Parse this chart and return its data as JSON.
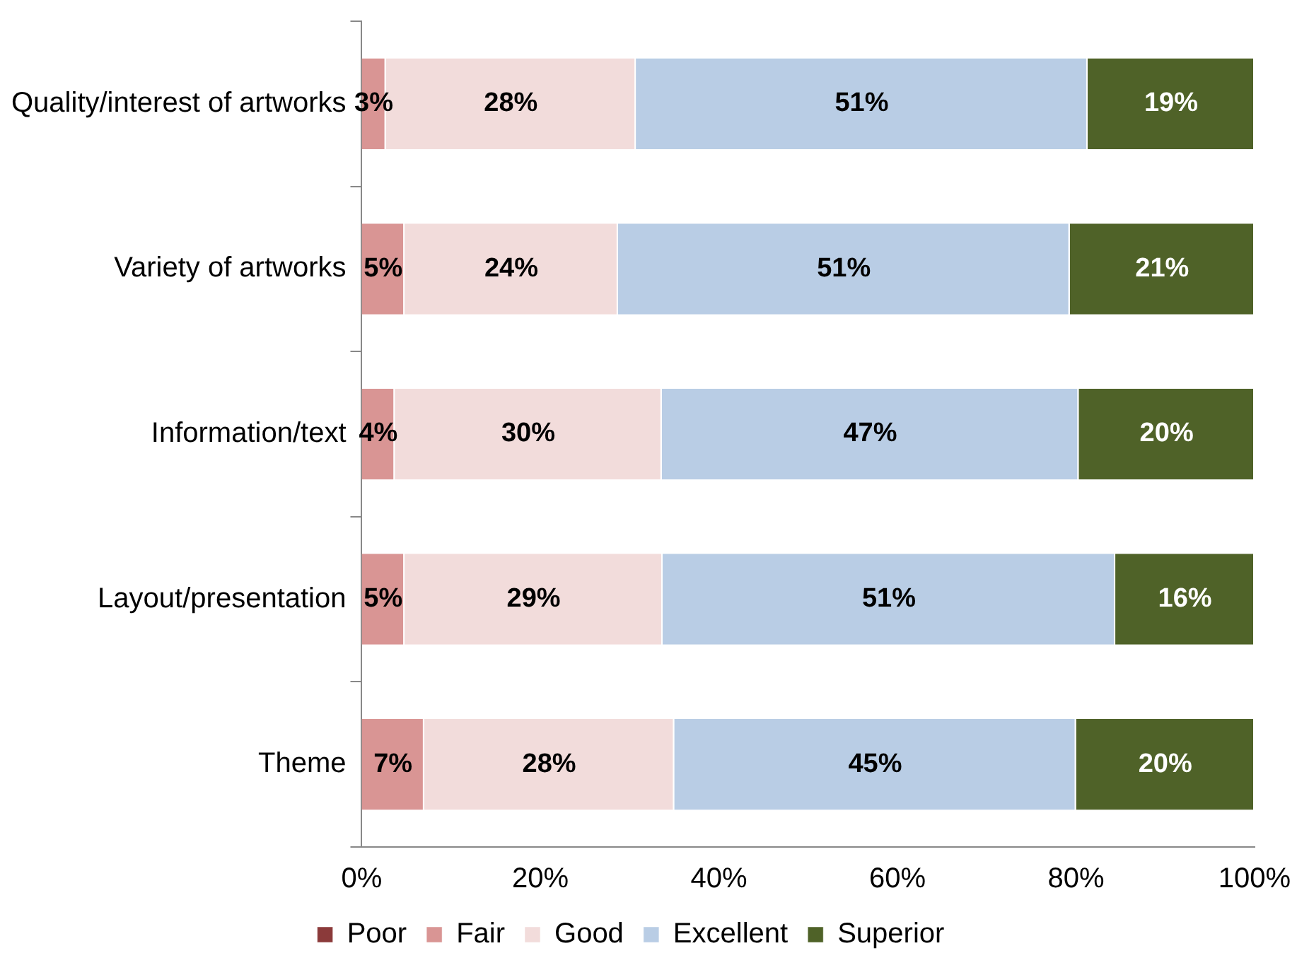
{
  "chart_data": {
    "type": "bar",
    "orientation": "horizontal",
    "stacked": true,
    "legend": "bottom",
    "grid": false,
    "categories": [
      "Quality/interest of artworks",
      "Variety of artworks",
      "Information/text",
      "Layout/presentation",
      "Theme"
    ],
    "xlim": [
      0,
      100
    ],
    "xticks": [
      {
        "value": 0,
        "label": "0%"
      },
      {
        "value": 20,
        "label": "20%"
      },
      {
        "value": 40,
        "label": "40%"
      },
      {
        "value": 60,
        "label": "60%"
      },
      {
        "value": 80,
        "label": "80%"
      },
      {
        "value": 100,
        "label": "100%"
      }
    ],
    "series": [
      {
        "name": "Poor",
        "color": "#8b3a3a",
        "values": [
          0,
          0,
          0,
          0,
          0
        ],
        "value_labels": [
          null,
          null,
          null,
          null,
          null
        ]
      },
      {
        "name": "Fair",
        "color": "#d99594",
        "values": [
          2.7,
          4.8,
          3.7,
          4.8,
          7
        ],
        "value_labels": [
          "3%",
          "5%",
          "4%",
          "5%",
          "7%"
        ]
      },
      {
        "name": "Good",
        "color": "#f2dcdb",
        "values": [
          28,
          23.9,
          29.9,
          28.9,
          28
        ],
        "value_labels": [
          "28%",
          "24%",
          "30%",
          "29%",
          "28%"
        ]
      },
      {
        "name": "Excellent",
        "color": "#b9cde5",
        "values": [
          50.6,
          50.6,
          46.7,
          50.7,
          45
        ],
        "value_labels": [
          "51%",
          "51%",
          "47%",
          "51%",
          "45%"
        ]
      },
      {
        "name": "Superior",
        "color": "#4f6228",
        "values": [
          18.7,
          20.7,
          19.7,
          15.6,
          20
        ],
        "value_labels": [
          "19%",
          "21%",
          "20%",
          "16%",
          "20%"
        ]
      }
    ]
  }
}
